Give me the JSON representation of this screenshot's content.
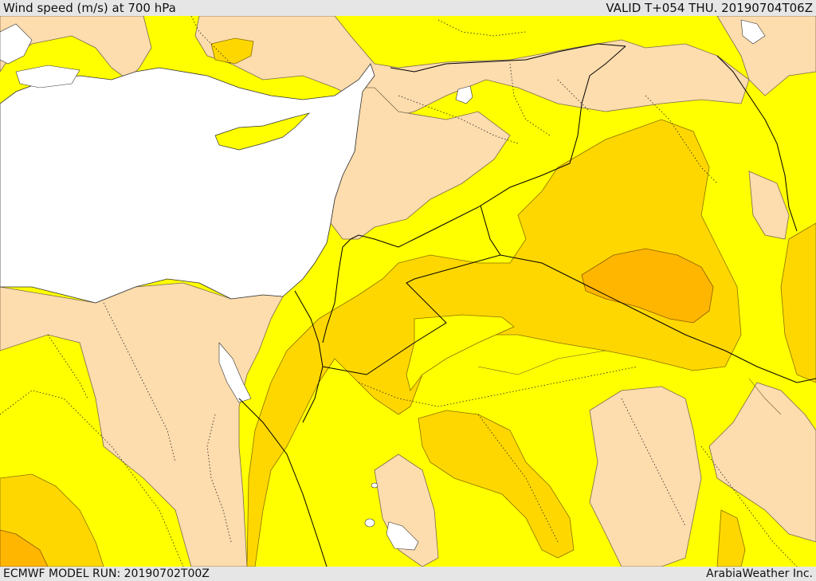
{
  "header": {
    "title": "Wind speed (m/s) at 700 hPa",
    "valid_time": "VALID T+054 THU. 20190704T06Z"
  },
  "footer": {
    "model_run": "ECMWF MODEL RUN: 20190702T00Z",
    "credit": "ArabiaWeather Inc."
  },
  "colors": {
    "sea": "#ffffff",
    "band_low": "#fddcad",
    "band_1": "#ffff00",
    "band_2": "#ffd700",
    "band_3": "#ffb600",
    "border": "#000000"
  }
}
